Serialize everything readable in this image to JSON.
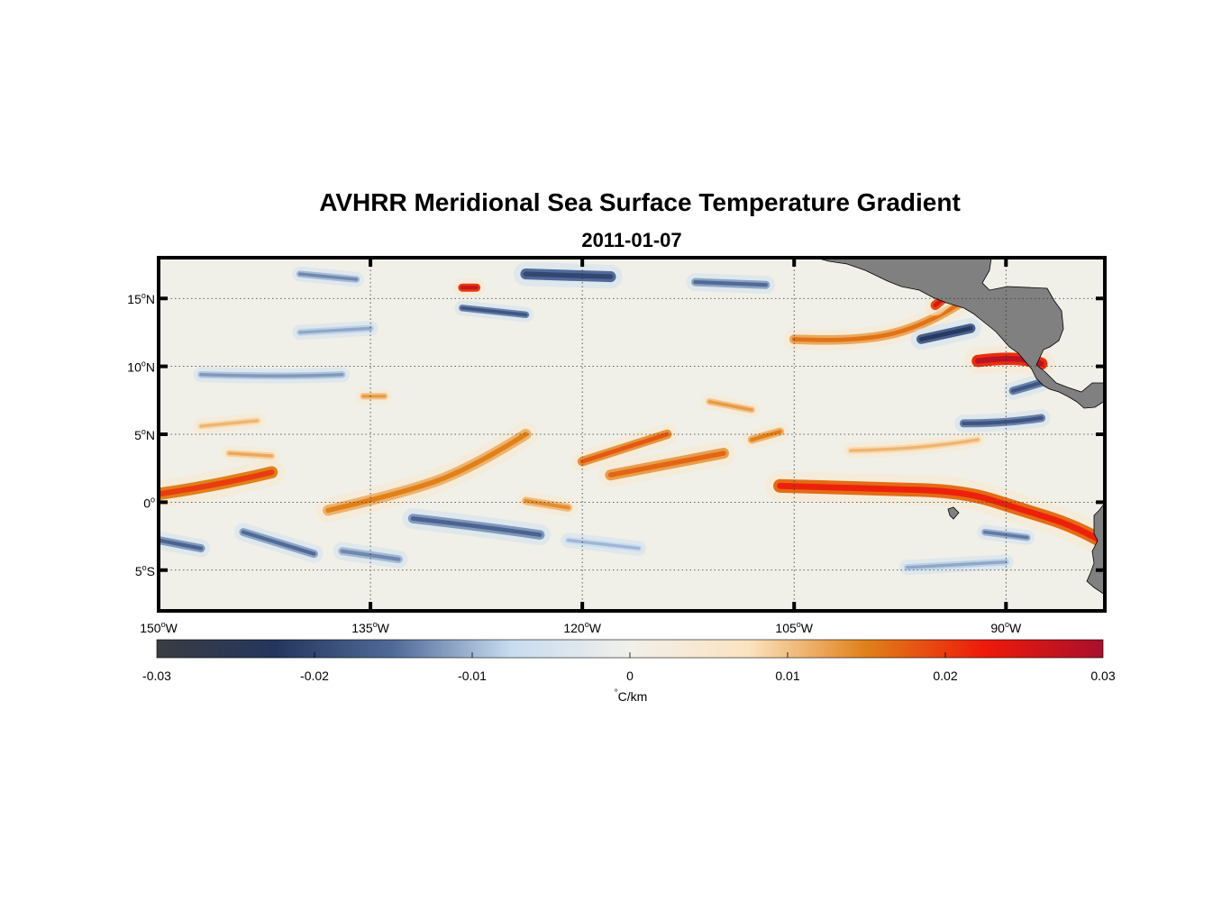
{
  "chart_data": {
    "type": "heatmap",
    "title": "AVHRR Meridional Sea Surface Temperature Gradient",
    "subtitle": "2011-01-07",
    "x_range": [
      -150,
      -83
    ],
    "y_range": [
      -8,
      18
    ],
    "x_ticks": [
      {
        "value": -150,
        "num": "150",
        "hemi": "W"
      },
      {
        "value": -135,
        "num": "135",
        "hemi": "W"
      },
      {
        "value": -120,
        "num": "120",
        "hemi": "W"
      },
      {
        "value": -105,
        "num": "105",
        "hemi": "W"
      },
      {
        "value": -90,
        "num": "90",
        "hemi": "W"
      }
    ],
    "y_ticks": [
      {
        "value": 15,
        "num": "15",
        "hemi": "N"
      },
      {
        "value": 10,
        "num": "10",
        "hemi": "N"
      },
      {
        "value": 5,
        "num": "5",
        "hemi": "N"
      },
      {
        "value": 0,
        "num": "0",
        "hemi": ""
      },
      {
        "value": -5,
        "num": "5",
        "hemi": "S"
      }
    ],
    "grid": true,
    "colorbar": {
      "range": [
        -0.03,
        0.03
      ],
      "ticks": [
        {
          "value": -0.03,
          "label": "-0.03"
        },
        {
          "value": -0.02,
          "label": "-0.02"
        },
        {
          "value": -0.01,
          "label": "-0.01"
        },
        {
          "value": 0,
          "label": "0"
        },
        {
          "value": 0.01,
          "label": "0.01"
        },
        {
          "value": 0.02,
          "label": "0.02"
        },
        {
          "value": 0.03,
          "label": "0.03"
        }
      ],
      "unit_symbol": "°",
      "unit_text": "C/km",
      "colors": [
        "#3a3c42",
        "#24365e",
        "#506a98",
        "#c8dcf0",
        "#f1f0ea",
        "#fbe3c0",
        "#e08018",
        "#ee1a0a",
        "#a8102c"
      ],
      "land_color": "#808080"
    },
    "features": [
      {
        "kind": "warm",
        "name": "equatorial front east",
        "lon": [
          -106,
          -99,
          -93,
          -89,
          -85,
          -83
        ],
        "lat": [
          1.2,
          1.0,
          0.8,
          -0.5,
          -1.8,
          -3.0
        ],
        "width": 1.0,
        "value": 0.022
      },
      {
        "kind": "warm",
        "name": "equatorial front west",
        "lon": [
          -150,
          -146,
          -142
        ],
        "lat": [
          0.6,
          1.2,
          2.2
        ],
        "width": 0.9,
        "value": 0.02
      },
      {
        "kind": "warm",
        "name": "tropical instability wave crest",
        "lon": [
          -138,
          -133,
          -128,
          -124
        ],
        "lat": [
          -0.6,
          0.6,
          2.4,
          5.0
        ],
        "width": 0.8,
        "value": 0.015
      },
      {
        "kind": "warm",
        "name": "tropical instability wave crest",
        "lon": [
          -118,
          -114,
          -110
        ],
        "lat": [
          2.0,
          2.8,
          3.6
        ],
        "width": 0.8,
        "value": 0.017
      },
      {
        "kind": "warm",
        "name": "tropical instability wave crest",
        "lon": [
          -120,
          -117,
          -114
        ],
        "lat": [
          3.0,
          4.0,
          5.0
        ],
        "width": 0.7,
        "value": 0.018
      },
      {
        "kind": "warm",
        "name": "northern front",
        "lon": [
          -105,
          -101,
          -96,
          -93
        ],
        "lat": [
          12.0,
          11.8,
          12.8,
          14.8
        ],
        "width": 0.7,
        "value": 0.016
      },
      {
        "kind": "warm",
        "name": "gulf of papagayo",
        "lon": [
          -92,
          -89,
          -87.5
        ],
        "lat": [
          10.4,
          10.8,
          10.2
        ],
        "width": 0.9,
        "value": 0.028
      },
      {
        "kind": "warm",
        "name": "gulf of tehuantepec",
        "lon": [
          -95,
          -93.5
        ],
        "lat": [
          14.5,
          15.8
        ],
        "width": 0.7,
        "value": 0.025
      },
      {
        "kind": "warm",
        "name": "eddy",
        "lon": [
          -128.5,
          -127.5
        ],
        "lat": [
          15.8,
          15.8
        ],
        "width": 0.6,
        "value": 0.027
      },
      {
        "kind": "warm",
        "name": "north equatorial band",
        "lon": [
          -101,
          -96,
          -92
        ],
        "lat": [
          3.8,
          3.9,
          4.6
        ],
        "width": 0.5,
        "value": 0.011
      },
      {
        "kind": "warm",
        "name": "patch",
        "lon": [
          -147,
          -143
        ],
        "lat": [
          5.6,
          6.0
        ],
        "width": 0.5,
        "value": 0.011
      },
      {
        "kind": "warm",
        "name": "patch",
        "lon": [
          -135.5,
          -134
        ],
        "lat": [
          7.8,
          7.8
        ],
        "width": 0.5,
        "value": 0.013
      },
      {
        "kind": "warm",
        "name": "patch",
        "lon": [
          -108,
          -106
        ],
        "lat": [
          4.6,
          5.2
        ],
        "width": 0.6,
        "value": 0.015
      },
      {
        "kind": "warm",
        "name": "patch",
        "lon": [
          -111,
          -108
        ],
        "lat": [
          7.4,
          6.8
        ],
        "width": 0.5,
        "value": 0.013
      },
      {
        "kind": "warm",
        "name": "patch",
        "lon": [
          -124,
          -121
        ],
        "lat": [
          0.1,
          -0.4
        ],
        "width": 0.6,
        "value": 0.014
      },
      {
        "kind": "warm",
        "name": "patch",
        "lon": [
          -145,
          -142
        ],
        "lat": [
          3.6,
          3.4
        ],
        "width": 0.5,
        "value": 0.012
      },
      {
        "kind": "cold",
        "name": "cold band",
        "lon": [
          -132,
          -127,
          -123
        ],
        "lat": [
          -1.2,
          -1.8,
          -2.4
        ],
        "width": 0.7,
        "value": -0.016
      },
      {
        "kind": "cold",
        "name": "cold band",
        "lon": [
          -144,
          -139
        ],
        "lat": [
          -2.2,
          -3.8
        ],
        "width": 0.6,
        "value": -0.015
      },
      {
        "kind": "cold",
        "name": "cold band",
        "lon": [
          -150,
          -147
        ],
        "lat": [
          -2.8,
          -3.4
        ],
        "width": 0.6,
        "value": -0.016
      },
      {
        "kind": "cold",
        "name": "cold band",
        "lon": [
          -137,
          -133
        ],
        "lat": [
          -3.6,
          -4.2
        ],
        "width": 0.6,
        "value": -0.013
      },
      {
        "kind": "cold",
        "name": "cold band",
        "lon": [
          -147,
          -141,
          -137
        ],
        "lat": [
          9.4,
          9.2,
          9.4
        ],
        "width": 0.5,
        "value": -0.012
      },
      {
        "kind": "cold",
        "name": "cold band",
        "lon": [
          -140,
          -135
        ],
        "lat": [
          12.5,
          12.8
        ],
        "width": 0.5,
        "value": -0.011
      },
      {
        "kind": "cold",
        "name": "cold band",
        "lon": [
          -128.5,
          -124
        ],
        "lat": [
          14.3,
          13.8
        ],
        "width": 0.5,
        "value": -0.018
      },
      {
        "kind": "cold",
        "name": "cold band",
        "lon": [
          -124,
          -118
        ],
        "lat": [
          16.8,
          16.6
        ],
        "width": 0.8,
        "value": -0.02
      },
      {
        "kind": "cold",
        "name": "cold band",
        "lon": [
          -112,
          -107
        ],
        "lat": [
          16.2,
          16.0
        ],
        "width": 0.6,
        "value": -0.015
      },
      {
        "kind": "cold",
        "name": "cold band",
        "lon": [
          -140,
          -136
        ],
        "lat": [
          16.8,
          16.4
        ],
        "width": 0.5,
        "value": -0.013
      },
      {
        "kind": "cold",
        "name": "cold band",
        "lon": [
          -96,
          -92.5
        ],
        "lat": [
          12.0,
          12.8
        ],
        "width": 0.7,
        "value": -0.022
      },
      {
        "kind": "cold",
        "name": "cold band",
        "lon": [
          -93,
          -90,
          -87.5
        ],
        "lat": [
          5.8,
          5.8,
          6.2
        ],
        "width": 0.6,
        "value": -0.018
      },
      {
        "kind": "cold",
        "name": "cold band",
        "lon": [
          -89.5,
          -87.5
        ],
        "lat": [
          8.2,
          8.8
        ],
        "width": 0.6,
        "value": -0.018
      },
      {
        "kind": "cold",
        "name": "cold band",
        "lon": [
          -91.5,
          -88.5
        ],
        "lat": [
          -2.2,
          -2.6
        ],
        "width": 0.5,
        "value": -0.014
      },
      {
        "kind": "cold",
        "name": "cold band",
        "lon": [
          -97,
          -90
        ],
        "lat": [
          -4.8,
          -4.4
        ],
        "width": 0.5,
        "value": -0.011
      },
      {
        "kind": "cold",
        "name": "cold band",
        "lon": [
          -121,
          -116
        ],
        "lat": [
          -2.8,
          -3.4
        ],
        "width": 0.5,
        "value": -0.01
      }
    ]
  }
}
